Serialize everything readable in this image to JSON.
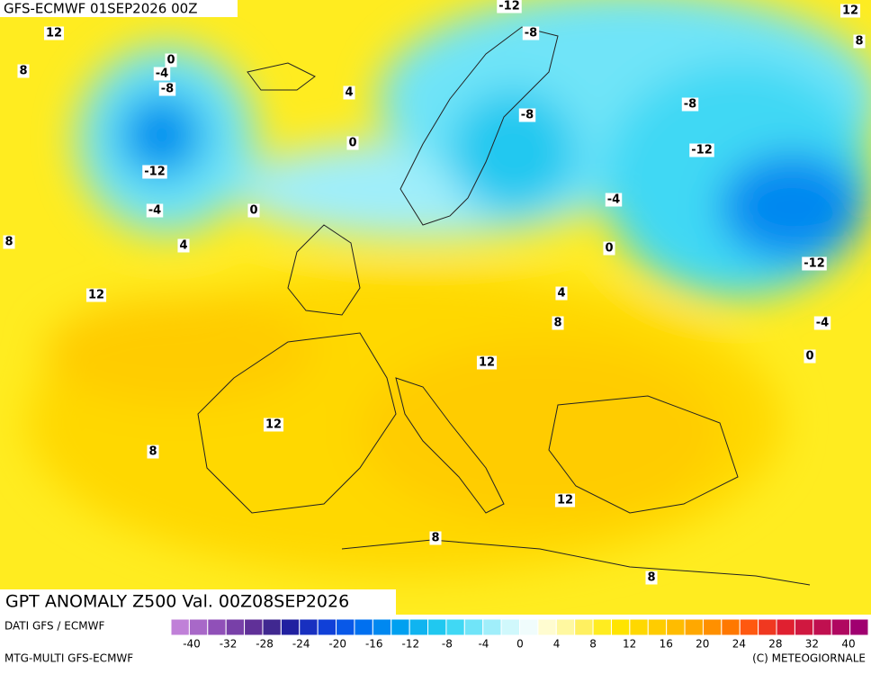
{
  "header": {
    "title": "GFS-ECMWF 01SEP2026 00Z"
  },
  "map": {
    "contour_labels": [
      -12,
      12,
      12,
      8,
      0,
      -8,
      8,
      -4,
      -8,
      4,
      -8,
      -8,
      0,
      -12,
      -12,
      -4,
      0,
      -4,
      8,
      4,
      0,
      -12,
      12,
      4,
      8,
      -4,
      0,
      12,
      12,
      8,
      12,
      8,
      8
    ]
  },
  "footer": {
    "title": "GPT ANOMALY Z500 Val. 00Z08SEP2026",
    "source": "DATI GFS / ECMWF",
    "model": "MTG-MULTI GFS-ECMWF",
    "credit": "(C) METEOGIORNALE"
  },
  "legend": {
    "labels": [
      -40,
      -32,
      -28,
      -24,
      -20,
      -16,
      -12,
      -8,
      -4,
      0,
      4,
      8,
      12,
      16,
      20,
      24,
      28,
      32,
      40
    ],
    "colors": [
      "#c080d8",
      "#a868c8",
      "#9050b8",
      "#7840a8",
      "#603098",
      "#402890",
      "#2020a0",
      "#1830c0",
      "#1040d8",
      "#0858e8",
      "#0070f0",
      "#0088f0",
      "#00a0f0",
      "#10b4f0",
      "#20c8f0",
      "#40d8f4",
      "#70e4f8",
      "#a0eefa",
      "#d0f8fc",
      "#f0fcfc",
      "#fffcd0",
      "#fff8a0",
      "#fff060",
      "#ffec20",
      "#ffe400",
      "#ffd800",
      "#ffcc00",
      "#ffbc00",
      "#ffa800",
      "#ff9000",
      "#ff7800",
      "#ff5810",
      "#f03820",
      "#e02030",
      "#d01840",
      "#c01050",
      "#b00860",
      "#a00070"
    ]
  }
}
